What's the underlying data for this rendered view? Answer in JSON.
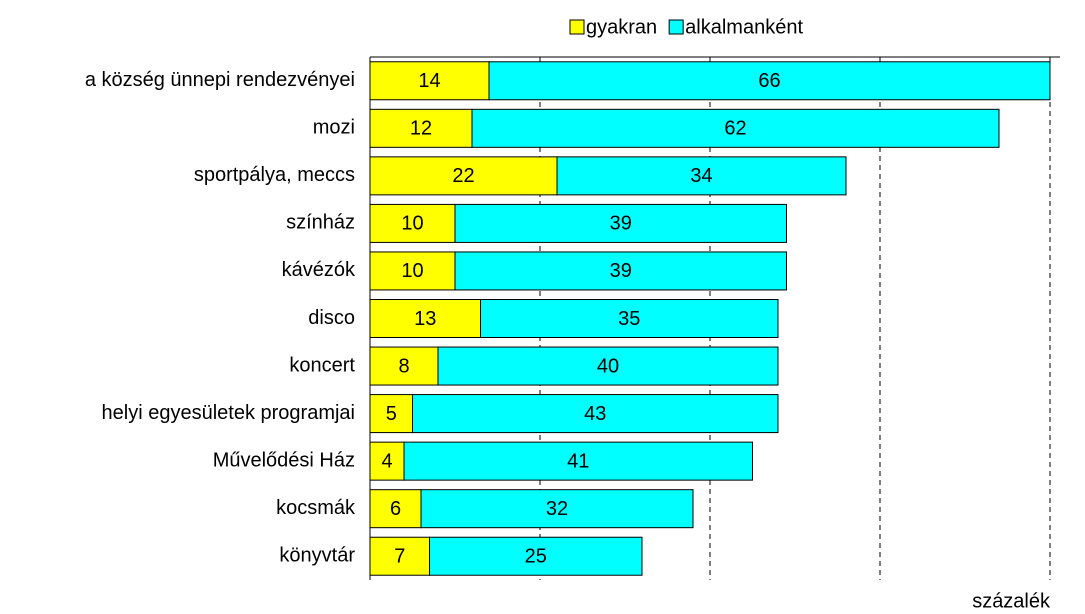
{
  "chart_data": {
    "type": "stacked_bar_horizontal",
    "x_label": "százalék",
    "categories": [
      "a község ünnepi rendezvényei",
      "mozi",
      "sportpálya, meccs",
      "színház",
      "kávézók",
      "disco",
      "koncert",
      "helyi egyesületek programjai",
      "Művelődési Ház",
      "kocsmák",
      "könyvtár"
    ],
    "series": [
      {
        "name": "gyakran",
        "color": "#ffff00",
        "values": [
          14,
          12,
          22,
          10,
          10,
          13,
          8,
          5,
          4,
          6,
          7
        ]
      },
      {
        "name": "alkalmanként",
        "color": "#00ffff",
        "values": [
          66,
          62,
          34,
          39,
          39,
          35,
          40,
          43,
          41,
          32,
          25
        ]
      }
    ],
    "xlim": [
      0,
      80
    ],
    "xticks": [
      0,
      20,
      40,
      60,
      80
    ],
    "grid": true,
    "legend": "top"
  }
}
